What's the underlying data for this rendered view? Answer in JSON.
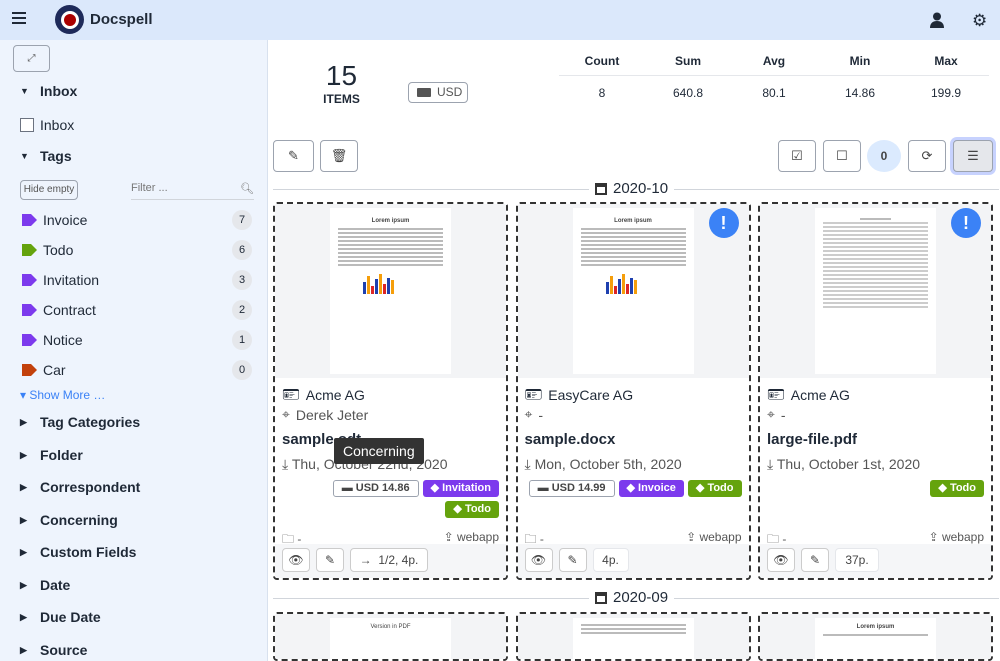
{
  "app": {
    "title": "Docspell"
  },
  "sidebar": {
    "inbox_section": "Inbox",
    "inbox_checkbox": "Inbox",
    "tags_section": "Tags",
    "hide_empty": "Hide empty",
    "filter_placeholder": "Filter ...",
    "tags": [
      {
        "label": "Invoice",
        "count": "7",
        "color": "#7c3aed"
      },
      {
        "label": "Todo",
        "count": "6",
        "color": "#65a30d"
      },
      {
        "label": "Invitation",
        "count": "3",
        "color": "#7c3aed"
      },
      {
        "label": "Contract",
        "count": "2",
        "color": "#7c3aed"
      },
      {
        "label": "Notice",
        "count": "1",
        "color": "#7c3aed"
      },
      {
        "label": "Car",
        "count": "0",
        "color": "#c2410c"
      }
    ],
    "show_more": "Show More …",
    "sections": [
      "Tag Categories",
      "Folder",
      "Correspondent",
      "Concerning",
      "Custom Fields",
      "Date",
      "Due Date",
      "Source"
    ]
  },
  "summary": {
    "count": "15",
    "items_label": "ITEMS",
    "currency": "USD",
    "headers": [
      "Count",
      "Sum",
      "Avg",
      "Min",
      "Max"
    ],
    "values": [
      "8",
      "640.8",
      "80.1",
      "14.86",
      "199.9"
    ]
  },
  "toolbar": {
    "selected_count": "0"
  },
  "groups": [
    {
      "label": "2020-10",
      "cards": [
        {
          "correspondent": "Acme AG",
          "concerning": "Derek Jeter",
          "title": "sample.odt",
          "date": "Thu, October 22nd, 2020",
          "amount": "USD  14.86",
          "tags": [
            "Invitation",
            "Todo"
          ],
          "folder": "-",
          "source": "webapp",
          "pages": "1/2, 4p.",
          "attention": false
        },
        {
          "correspondent": "EasyCare AG",
          "concerning": "-",
          "title": "sample.docx",
          "date": "Mon, October 5th, 2020",
          "amount": "USD  14.99",
          "tags": [
            "Invoice",
            "Todo"
          ],
          "folder": "-",
          "source": "webapp",
          "pages": "4p.",
          "attention": true
        },
        {
          "correspondent": "Acme AG",
          "concerning": "-",
          "title": "large-file.pdf",
          "date": "Thu, October 1st, 2020",
          "tags": [
            "Todo"
          ],
          "folder": "-",
          "source": "webapp",
          "pages": "37p.",
          "attention": true
        }
      ]
    },
    {
      "label": "2020-09"
    }
  ],
  "thumbs": {
    "lorem": "Lorem ipsum",
    "pdf": "Version in PDF"
  },
  "tooltip": "Concerning",
  "colors": {
    "purple": "#7c3aed",
    "green": "#65a30d",
    "accent": "#3b82f6"
  }
}
